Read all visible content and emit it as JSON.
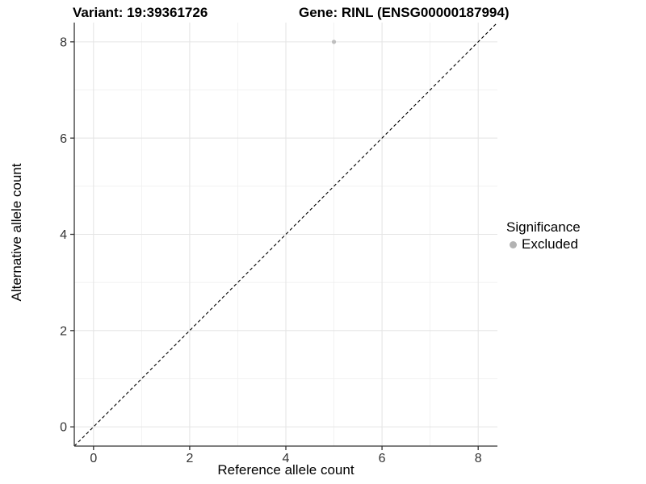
{
  "chart_data": {
    "type": "scatter",
    "titles": [
      "Variant: 19:39361726",
      "Gene: RINL (ENSG00000187994)"
    ],
    "xlabel": "Reference allele count",
    "ylabel": "Alternative allele count",
    "xlim": [
      -0.4,
      8.4
    ],
    "ylim": [
      -0.4,
      8.4
    ],
    "x_ticks": [
      0,
      2,
      4,
      6,
      8
    ],
    "y_ticks": [
      0,
      2,
      4,
      6,
      8
    ],
    "x_minor_ticks": [
      1,
      3,
      5,
      7
    ],
    "y_minor_ticks": [
      1,
      3,
      5,
      7
    ],
    "grid": true,
    "series": [
      {
        "name": "Excluded",
        "color": "#bebebe",
        "points": [
          {
            "x": 5,
            "y": 8
          }
        ]
      }
    ],
    "reference_line": {
      "type": "identity",
      "style": "dashed",
      "color": "#000000",
      "from": [
        -0.4,
        -0.4
      ],
      "to": [
        8.4,
        8.4
      ]
    },
    "legend": {
      "position": "right",
      "title": "Significance",
      "items": [
        {
          "label": "Excluded",
          "color": "#b3b3b3"
        }
      ]
    },
    "colors": {
      "background": "#ffffff",
      "grid_major": "#e5e5e5",
      "grid_minor": "#f0f0f0",
      "axis_line": "#333333",
      "tick_label": "#333333"
    }
  }
}
